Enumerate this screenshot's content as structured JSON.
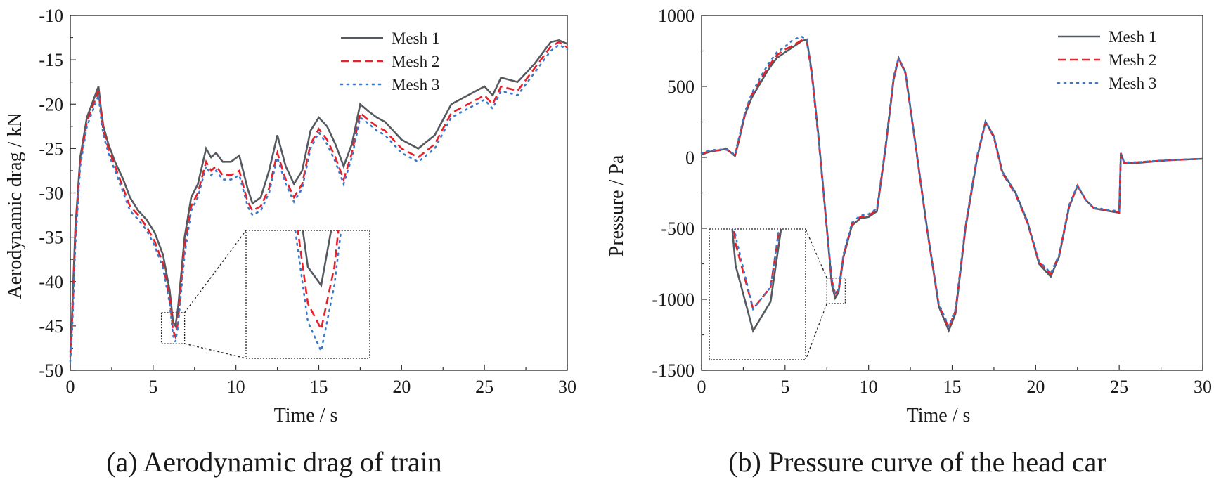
{
  "colors": {
    "mesh1": "#555a60",
    "mesh2": "#e8202a",
    "mesh3": "#3a78c8",
    "frame": "#333333"
  },
  "chart_data": [
    {
      "type": "line",
      "caption": "(a) Aerodynamic drag of train",
      "xlabel": "Time / s",
      "ylabel": "Aerodynamic drag  / kN",
      "xlim": [
        0,
        30
      ],
      "ylim": [
        -50,
        -10
      ],
      "xticks": [
        0,
        5,
        10,
        15,
        20,
        25,
        30
      ],
      "yticks": [
        -50,
        -45,
        -40,
        -35,
        -30,
        -25,
        -20,
        -15,
        -10
      ],
      "legend": [
        "Mesh 1",
        "Mesh 2",
        "Mesh 3"
      ],
      "legend_position": "top-right",
      "zoom_window": {
        "x": [
          5.5,
          6.9
        ],
        "y": [
          -47,
          -43.5
        ]
      },
      "series": [
        {
          "name": "Mesh 1",
          "x": [
            0,
            0.1,
            0.3,
            0.6,
            1,
            1.4,
            1.7,
            1.85,
            2.0,
            2.3,
            2.7,
            3.2,
            3.6,
            4.1,
            4.6,
            5.1,
            5.6,
            6.0,
            6.2,
            6.35,
            6.5,
            6.7,
            6.9,
            7.3,
            7.7,
            8.2,
            8.5,
            8.8,
            9.2,
            9.7,
            10.2,
            10.7,
            11.0,
            11.5,
            12.0,
            12.5,
            13.0,
            13.5,
            14.0,
            14.5,
            15.0,
            15.5,
            16.0,
            16.5,
            17.0,
            17.5,
            18.0,
            18.5,
            19.0,
            20.0,
            21.0,
            22.0,
            23.0,
            24.0,
            25.0,
            25.5,
            26.0,
            27.0,
            28.0,
            29.0,
            29.5,
            30.0
          ],
          "values": [
            -48,
            -44,
            -34,
            -26,
            -21.5,
            -19.5,
            -18.0,
            -20.5,
            -22.5,
            -24.5,
            -26.5,
            -28.5,
            -30.5,
            -32.0,
            -33.0,
            -34.5,
            -37.0,
            -41.0,
            -44.5,
            -45.0,
            -43.0,
            -39.0,
            -35.0,
            -30.5,
            -29.0,
            -25.0,
            -26.0,
            -25.5,
            -26.5,
            -26.5,
            -25.8,
            -29.5,
            -31.2,
            -30.5,
            -27.5,
            -23.5,
            -27.0,
            -29.0,
            -27.5,
            -23.0,
            -21.5,
            -22.5,
            -24.5,
            -27.0,
            -24.5,
            -20.0,
            -20.8,
            -21.5,
            -22.0,
            -24.0,
            -25.0,
            -23.5,
            -20.0,
            -19.0,
            -18.0,
            -19.0,
            -17.0,
            -17.5,
            -15.5,
            -13.0,
            -12.8,
            -13.2
          ]
        },
        {
          "name": "Mesh 2",
          "x": [
            0,
            0.1,
            0.3,
            0.6,
            1,
            1.4,
            1.7,
            1.85,
            2.0,
            2.3,
            2.7,
            3.2,
            3.6,
            4.1,
            4.6,
            5.1,
            5.6,
            6.0,
            6.2,
            6.35,
            6.5,
            6.7,
            6.9,
            7.3,
            7.7,
            8.2,
            8.5,
            8.8,
            9.2,
            9.7,
            10.2,
            10.7,
            11.0,
            11.5,
            12.0,
            12.5,
            13.0,
            13.5,
            14.0,
            14.5,
            15.0,
            15.5,
            16.0,
            16.5,
            17.0,
            17.5,
            18.0,
            18.5,
            19.0,
            20.0,
            21.0,
            22.0,
            23.0,
            24.0,
            25.0,
            25.5,
            26.0,
            27.0,
            28.0,
            29.0,
            29.5,
            30.0
          ],
          "values": [
            -48.5,
            -45,
            -35,
            -26.5,
            -22,
            -20.0,
            -18.5,
            -21,
            -23,
            -25,
            -27,
            -29.5,
            -31.5,
            -32.5,
            -33.8,
            -35.5,
            -38.0,
            -42.0,
            -45.5,
            -46.2,
            -44.5,
            -40.0,
            -36.0,
            -31.5,
            -30.0,
            -26.5,
            -27.5,
            -27.0,
            -28.0,
            -28.0,
            -27.5,
            -31.0,
            -32.0,
            -31.5,
            -29.5,
            -25.5,
            -28.5,
            -30.5,
            -29.0,
            -24.5,
            -22.8,
            -24.0,
            -26.0,
            -28.5,
            -25.5,
            -21.0,
            -21.8,
            -22.5,
            -23.0,
            -25.0,
            -26.0,
            -24.5,
            -21.0,
            -20.0,
            -19.0,
            -20.0,
            -18.0,
            -18.5,
            -16.0,
            -13.5,
            -13.0,
            -13.6
          ]
        },
        {
          "name": "Mesh 3",
          "x": [
            0,
            0.1,
            0.3,
            0.6,
            1,
            1.4,
            1.7,
            1.85,
            2.0,
            2.3,
            2.7,
            3.2,
            3.6,
            4.1,
            4.6,
            5.1,
            5.6,
            6.0,
            6.2,
            6.35,
            6.5,
            6.7,
            6.9,
            7.3,
            7.7,
            8.2,
            8.5,
            8.8,
            9.2,
            9.7,
            10.2,
            10.7,
            11.0,
            11.5,
            12.0,
            12.5,
            13.0,
            13.5,
            14.0,
            14.5,
            15.0,
            15.5,
            16.0,
            16.5,
            17.0,
            17.5,
            18.0,
            18.5,
            19.0,
            20.0,
            21.0,
            22.0,
            23.0,
            24.0,
            25.0,
            25.5,
            26.0,
            27.0,
            28.0,
            29.0,
            29.5,
            30.0
          ],
          "values": [
            -49,
            -46,
            -36,
            -27,
            -22.5,
            -20.5,
            -19.0,
            -21.5,
            -23.5,
            -25.5,
            -27.5,
            -30.0,
            -32.0,
            -33.0,
            -34.2,
            -36.0,
            -38.5,
            -42.5,
            -46.0,
            -46.8,
            -45.0,
            -41.0,
            -37.0,
            -32.0,
            -30.5,
            -27.0,
            -28.0,
            -27.5,
            -28.5,
            -28.5,
            -28.0,
            -31.5,
            -32.5,
            -32.0,
            -30.0,
            -26.0,
            -29.0,
            -31.0,
            -29.5,
            -25.0,
            -23.2,
            -24.5,
            -26.5,
            -29.0,
            -26.0,
            -21.5,
            -22.2,
            -23.0,
            -23.5,
            -25.5,
            -26.5,
            -25.0,
            -21.5,
            -20.5,
            -19.5,
            -20.5,
            -18.5,
            -19.0,
            -16.5,
            -14.0,
            -13.3,
            -13.8
          ]
        }
      ]
    },
    {
      "type": "line",
      "caption": "(b) Pressure curve of the head car",
      "xlabel": "Time / s",
      "ylabel": "Pressure / Pa",
      "xlim": [
        0,
        30
      ],
      "ylim": [
        -1500,
        1000
      ],
      "xticks": [
        0,
        5,
        10,
        15,
        20,
        25,
        30
      ],
      "yticks": [
        -1500,
        -1000,
        -500,
        0,
        500,
        1000
      ],
      "legend": [
        "Mesh 1",
        "Mesh 2",
        "Mesh 3"
      ],
      "legend_position": "top-right",
      "zoom_window": {
        "x": [
          7.5,
          8.6
        ],
        "y": [
          -1030,
          -850
        ]
      },
      "series": [
        {
          "name": "Mesh 1",
          "x": [
            0,
            0.5,
            1.0,
            1.5,
            2.0,
            2.2,
            2.6,
            3.0,
            3.5,
            4.0,
            4.5,
            5.0,
            5.5,
            6.0,
            6.3,
            6.6,
            7.0,
            7.5,
            7.8,
            8.0,
            8.2,
            8.5,
            9.0,
            9.5,
            10.0,
            10.5,
            11.0,
            11.5,
            11.8,
            12.2,
            12.8,
            13.5,
            14.2,
            14.8,
            15.2,
            15.8,
            16.5,
            17.0,
            17.5,
            18.0,
            18.8,
            19.5,
            20.2,
            20.9,
            21.4,
            22.0,
            22.5,
            23.0,
            23.5,
            24.5,
            25.0,
            25.1,
            25.3,
            26.0,
            28.0,
            30.0
          ],
          "values": [
            20,
            40,
            50,
            60,
            10,
            100,
            300,
            420,
            520,
            620,
            700,
            740,
            780,
            820,
            830,
            600,
            150,
            -500,
            -900,
            -990,
            -950,
            -700,
            -480,
            -430,
            -420,
            -380,
            50,
            550,
            700,
            600,
            100,
            -500,
            -1050,
            -1220,
            -1100,
            -500,
            0,
            250,
            150,
            -100,
            -250,
            -450,
            -750,
            -840,
            -700,
            -350,
            -200,
            -300,
            -360,
            -380,
            -390,
            30,
            -40,
            -40,
            -20,
            -10
          ]
        },
        {
          "name": "Mesh 2",
          "x": [
            0,
            0.5,
            1.0,
            1.5,
            2.0,
            2.2,
            2.6,
            3.0,
            3.5,
            4.0,
            4.5,
            5.0,
            5.5,
            6.0,
            6.3,
            6.6,
            7.0,
            7.5,
            7.8,
            8.0,
            8.2,
            8.5,
            9.0,
            9.5,
            10.0,
            10.5,
            11.0,
            11.5,
            11.8,
            12.2,
            12.8,
            13.5,
            14.2,
            14.8,
            15.2,
            15.8,
            16.5,
            17.0,
            17.5,
            18.0,
            18.8,
            19.5,
            20.2,
            20.9,
            21.4,
            22.0,
            22.5,
            23.0,
            23.5,
            24.5,
            25.0,
            25.1,
            25.3,
            26.0,
            28.0,
            30.0
          ],
          "values": [
            25,
            45,
            50,
            55,
            15,
            110,
            310,
            440,
            540,
            640,
            720,
            760,
            790,
            825,
            820,
            580,
            130,
            -510,
            -870,
            -960,
            -930,
            -690,
            -470,
            -420,
            -410,
            -370,
            60,
            560,
            700,
            590,
            90,
            -510,
            -1040,
            -1200,
            -1080,
            -490,
            10,
            250,
            140,
            -110,
            -260,
            -460,
            -740,
            -820,
            -690,
            -340,
            -200,
            -300,
            -360,
            -375,
            -385,
            30,
            -40,
            -35,
            -20,
            -10
          ]
        },
        {
          "name": "Mesh 3",
          "x": [
            0,
            0.5,
            1.0,
            1.5,
            2.0,
            2.2,
            2.6,
            3.0,
            3.5,
            4.0,
            4.5,
            5.0,
            5.5,
            6.0,
            6.3,
            6.6,
            7.0,
            7.5,
            7.8,
            8.0,
            8.2,
            8.5,
            9.0,
            9.5,
            10.0,
            10.5,
            11.0,
            11.5,
            11.8,
            12.2,
            12.8,
            13.5,
            14.2,
            14.8,
            15.2,
            15.8,
            16.5,
            17.0,
            17.5,
            18.0,
            18.8,
            19.5,
            20.2,
            20.9,
            21.4,
            22.0,
            22.5,
            23.0,
            23.5,
            24.5,
            25.0,
            25.1,
            25.3,
            26.0,
            28.0,
            30.0
          ],
          "values": [
            30,
            50,
            55,
            55,
            20,
            120,
            320,
            450,
            560,
            660,
            740,
            780,
            830,
            850,
            830,
            590,
            140,
            -500,
            -860,
            -960,
            -930,
            -680,
            -460,
            -410,
            -400,
            -360,
            70,
            570,
            705,
            600,
            95,
            -500,
            -1030,
            -1190,
            -1070,
            -480,
            15,
            255,
            145,
            -100,
            -255,
            -450,
            -730,
            -815,
            -690,
            -335,
            -195,
            -300,
            -355,
            -372,
            -380,
            25,
            -35,
            -35,
            -18,
            -10
          ]
        }
      ]
    }
  ]
}
